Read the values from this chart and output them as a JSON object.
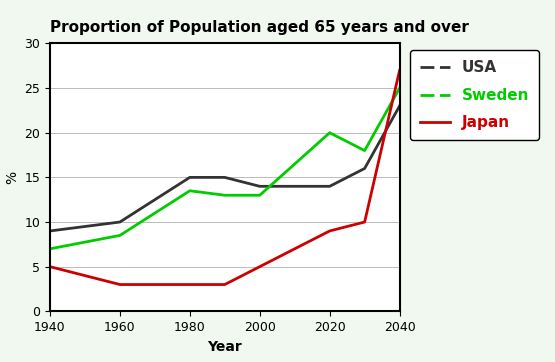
{
  "title": "Proportion of Population aged 65 years and over",
  "xlabel": "Year",
  "ylabel": "%",
  "years": [
    1940,
    1960,
    1980,
    1990,
    2000,
    2020,
    2030,
    2040
  ],
  "usa": [
    9,
    10,
    15,
    15,
    14,
    14,
    16,
    23
  ],
  "sweden": [
    7,
    8.5,
    13.5,
    13,
    13,
    20,
    18,
    25
  ],
  "japan": [
    5,
    3,
    3,
    3,
    5,
    9,
    10,
    27
  ],
  "usa_color": "#333333",
  "sweden_color": "#00cc00",
  "japan_color": "#cc0000",
  "ylim": [
    0,
    30
  ],
  "xlim": [
    1940,
    2040
  ],
  "xticks": [
    1940,
    1960,
    1980,
    2000,
    2020,
    2040
  ],
  "yticks": [
    0,
    5,
    10,
    15,
    20,
    25,
    30
  ],
  "outer_bg": "#f0f8f0",
  "plot_bg": "#ffffff",
  "legend_labels": [
    "USA",
    "Sweden",
    "Japan"
  ],
  "legend_colors": [
    "#333333",
    "#00cc00",
    "#cc0000"
  ],
  "title_fontsize": 11,
  "axis_label_fontsize": 10,
  "tick_fontsize": 9,
  "line_width": 2.0,
  "legend_fontsize": 10
}
